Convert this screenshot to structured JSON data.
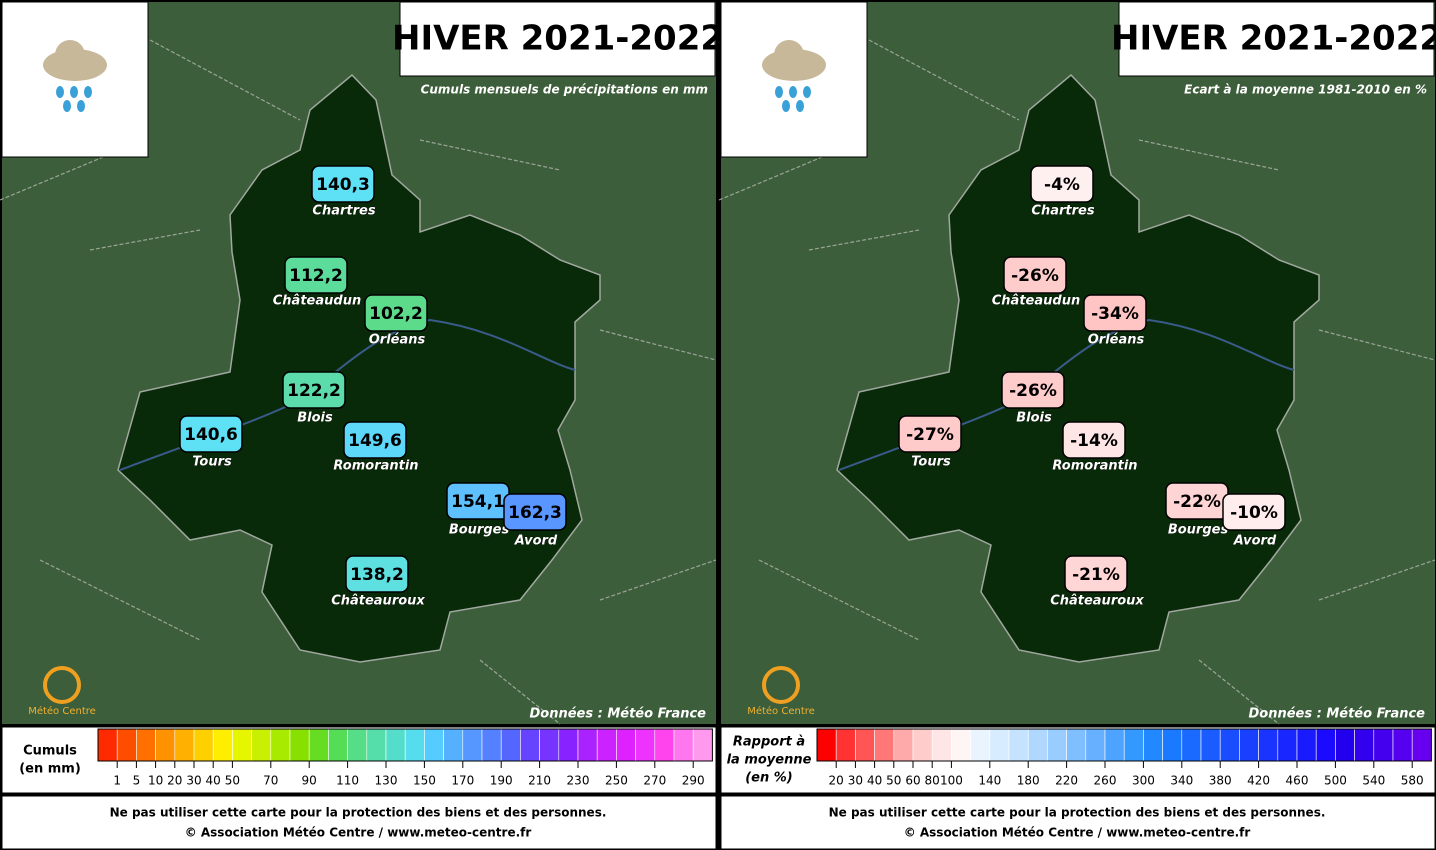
{
  "logo": "Météo Centre",
  "panels": [
    {
      "title": "HIVER 2021-2022",
      "subtitle": "Cumuls mensuels de précipitations en mm",
      "source": "Données : Météo France",
      "cities": [
        {
          "name": "Chartres",
          "value": "140,3",
          "color": "#5ee0f5"
        },
        {
          "name": "Châteaudun",
          "value": "112,2",
          "color": "#5cdc9a"
        },
        {
          "name": "Orléans",
          "value": "102,2",
          "color": "#5cdc8a"
        },
        {
          "name": "Blois",
          "value": "122,2",
          "color": "#5cdcaa"
        },
        {
          "name": "Tours",
          "value": "140,6",
          "color": "#5ee0f5"
        },
        {
          "name": "Romorantin",
          "value": "149,6",
          "color": "#5ed8fa"
        },
        {
          "name": "Bourges",
          "value": "154,1",
          "color": "#5ec0ff"
        },
        {
          "name": "Avord",
          "value": "162,3",
          "color": "#5a96ff"
        },
        {
          "name": "Châteauroux",
          "value": "138,2",
          "color": "#5ee0e0"
        }
      ],
      "legend": {
        "label": [
          "Cumuls",
          "(en mm)"
        ],
        "ticks": [
          "1",
          "5",
          "10",
          "20",
          "30",
          "40",
          "50",
          "70",
          "90",
          "110",
          "130",
          "150",
          "170",
          "190",
          "210",
          "230",
          "250",
          "270",
          "290"
        ],
        "colors": [
          "#ff2a00",
          "#ff4d00",
          "#ff7000",
          "#ff9200",
          "#ffb000",
          "#ffd000",
          "#ffee00",
          "#e6f500",
          "#c8f000",
          "#a8ea00",
          "#88e000",
          "#66dd22",
          "#55dd55",
          "#55dd88",
          "#55ddaa",
          "#55ddcc",
          "#55ddee",
          "#55ccff",
          "#55b0ff",
          "#5596ff",
          "#5580ff",
          "#5566ff",
          "#6644ff",
          "#7733ff",
          "#8822ff",
          "#aa22ff",
          "#cc22ff",
          "#dd22ff",
          "#ee33ff",
          "#ff44ee",
          "#ff77ee",
          "#ff99ee"
        ]
      },
      "footer": [
        "Ne pas utiliser cette carte pour la protection des biens et des personnes.",
        "© Association Météo Centre / www.meteo-centre.fr"
      ]
    },
    {
      "title": "HIVER 2021-2022",
      "subtitle": "Ecart à la moyenne 1981-2010 en %",
      "source": "Données : Météo France",
      "cities": [
        {
          "name": "Chartres",
          "value": "-4%",
          "color": "#fff0f0"
        },
        {
          "name": "Châteaudun",
          "value": "-26%",
          "color": "#ffcccc"
        },
        {
          "name": "Orléans",
          "value": "-34%",
          "color": "#ffc4c4"
        },
        {
          "name": "Blois",
          "value": "-26%",
          "color": "#ffcccc"
        },
        {
          "name": "Tours",
          "value": "-27%",
          "color": "#ffcaca"
        },
        {
          "name": "Romorantin",
          "value": "-14%",
          "color": "#ffe6e6"
        },
        {
          "name": "Bourges",
          "value": "-22%",
          "color": "#ffd4d4"
        },
        {
          "name": "Avord",
          "value": "-10%",
          "color": "#ffecec"
        },
        {
          "name": "Châteauroux",
          "value": "-21%",
          "color": "#ffd6d6"
        }
      ],
      "legend": {
        "label": [
          "Rapport à",
          "la moyenne",
          "(en %)"
        ],
        "ticks": [
          "20",
          "30",
          "40",
          "50",
          "60",
          "80",
          "100",
          "140",
          "180",
          "220",
          "260",
          "300",
          "340",
          "380",
          "420",
          "460",
          "500",
          "540",
          "580"
        ],
        "colors": [
          "#ff0000",
          "#ff3333",
          "#ff5555",
          "#ff7777",
          "#ffaaaa",
          "#ffcccc",
          "#ffe6e6",
          "#fff5f5",
          "#eaf4ff",
          "#d8ecff",
          "#c5e2ff",
          "#b0d8ff",
          "#99ccff",
          "#80bfff",
          "#66b0ff",
          "#4da3ff",
          "#3399ff",
          "#2288ff",
          "#1a7aff",
          "#1a6aff",
          "#1a5cff",
          "#1a4dff",
          "#1a40ff",
          "#1a33ff",
          "#1a26ff",
          "#1a1aff",
          "#1a0aff",
          "#2200ee",
          "#3300ee",
          "#4400ee",
          "#5500ee",
          "#6600ee"
        ]
      },
      "footer": [
        "Ne pas utiliser cette carte pour la protection des biens et des personnes.",
        "© Association Météo Centre / www.meteo-centre.fr"
      ]
    }
  ]
}
